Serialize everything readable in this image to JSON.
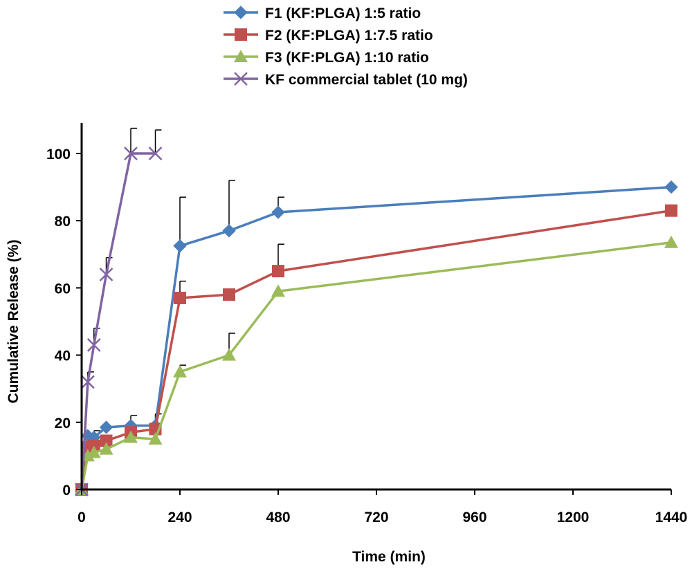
{
  "chart_data": {
    "type": "line",
    "title": "",
    "xlabel": "Time (min)",
    "ylabel": "Cumulative Release (%)",
    "xlim": [
      0,
      1440
    ],
    "ylim": [
      0,
      110
    ],
    "xticks": [
      0,
      240,
      480,
      720,
      960,
      1200,
      1440
    ],
    "yticks": [
      0,
      20,
      40,
      60,
      80,
      100
    ],
    "grid": false,
    "legend_position": "top",
    "series": [
      {
        "name": "F1 (KF:PLGA) 1:5 ratio",
        "color": "#4a7ebb",
        "marker": "diamond",
        "x": [
          0,
          15,
          30,
          60,
          120,
          180,
          240,
          360,
          480,
          1440
        ],
        "y": [
          0,
          16,
          15.5,
          18.5,
          19,
          19,
          72.5,
          77,
          82.5,
          90
        ],
        "err": [
          0,
          0,
          2,
          0,
          3,
          3.5,
          14.5,
          15,
          4.5,
          0
        ]
      },
      {
        "name": "F2 (KF:PLGA) 1:7.5 ratio",
        "color": "#c0504d",
        "marker": "square",
        "x": [
          0,
          15,
          30,
          60,
          120,
          180,
          240,
          360,
          480,
          1440
        ],
        "y": [
          0,
          12.5,
          13,
          14.5,
          17,
          18,
          57,
          58,
          65,
          83
        ],
        "err": [
          0,
          0,
          0,
          0,
          0,
          0,
          5,
          1.5,
          8,
          0
        ]
      },
      {
        "name": "F3 (KF:PLGA) 1:10 ratio",
        "color": "#9bbb59",
        "marker": "triangle",
        "x": [
          0,
          15,
          30,
          60,
          120,
          180,
          240,
          360,
          480,
          1440
        ],
        "y": [
          0,
          10,
          11,
          12,
          15.5,
          15,
          35,
          40,
          59,
          73.5
        ],
        "err": [
          0,
          0,
          0,
          0,
          0,
          0,
          2,
          6.5,
          0,
          0
        ]
      },
      {
        "name": "KF commercial tablet (10 mg)",
        "color": "#8064a2",
        "marker": "x",
        "x": [
          0,
          15,
          30,
          60,
          120,
          180
        ],
        "y": [
          0,
          32,
          43,
          64,
          100,
          100
        ],
        "err": [
          0,
          3,
          5,
          5,
          7.5,
          7
        ]
      }
    ]
  }
}
